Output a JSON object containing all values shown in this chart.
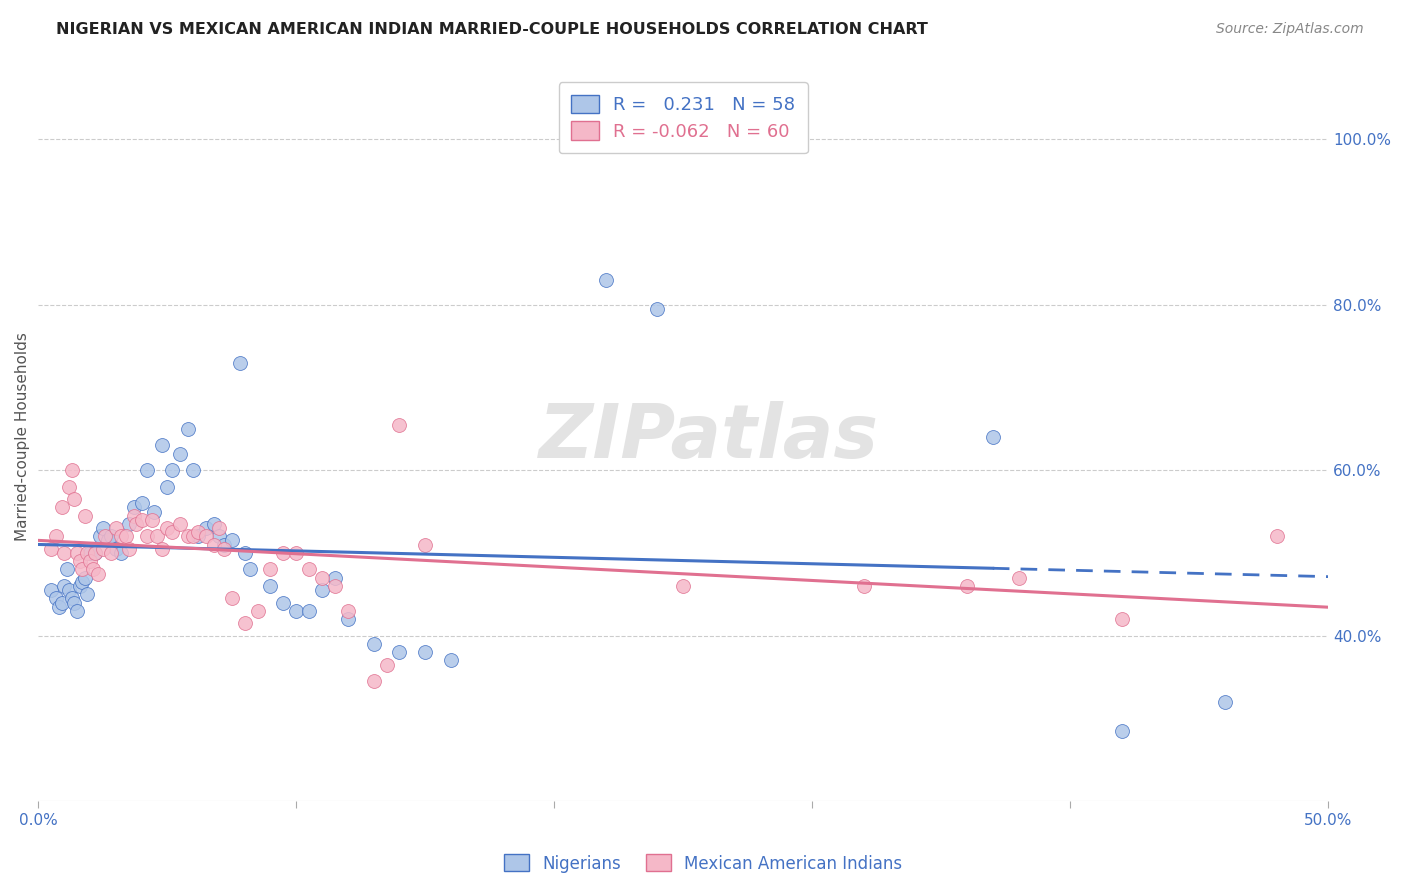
{
  "title": "NIGERIAN VS MEXICAN AMERICAN INDIAN MARRIED-COUPLE HOUSEHOLDS CORRELATION CHART",
  "source": "Source: ZipAtlas.com",
  "ylabel": "Married-couple Households",
  "legend_label1": "Nigerians",
  "legend_label2": "Mexican American Indians",
  "blue_color": "#aec6e8",
  "pink_color": "#f5b8c8",
  "blue_line_color": "#4472c4",
  "pink_line_color": "#e07090",
  "R_blue": 0.231,
  "N_blue": 58,
  "R_pink": -0.062,
  "N_pink": 60,
  "xmin": 0.0,
  "xmax": 0.5,
  "ymin": 0.2,
  "ymax": 1.08,
  "ytick_vals": [
    0.4,
    0.6,
    0.8,
    1.0
  ],
  "ytick_labels": [
    "40.0%",
    "60.0%",
    "80.0%",
    "100.0%"
  ],
  "xtick_vals": [
    0.0,
    0.1,
    0.2,
    0.3,
    0.4,
    0.5
  ],
  "blue_dots": [
    [
      0.005,
      0.455
    ],
    [
      0.007,
      0.445
    ],
    [
      0.008,
      0.435
    ],
    [
      0.009,
      0.44
    ],
    [
      0.01,
      0.46
    ],
    [
      0.011,
      0.48
    ],
    [
      0.012,
      0.455
    ],
    [
      0.013,
      0.445
    ],
    [
      0.014,
      0.44
    ],
    [
      0.015,
      0.43
    ],
    [
      0.016,
      0.46
    ],
    [
      0.017,
      0.465
    ],
    [
      0.018,
      0.47
    ],
    [
      0.019,
      0.45
    ],
    [
      0.02,
      0.5
    ],
    [
      0.022,
      0.5
    ],
    [
      0.024,
      0.52
    ],
    [
      0.025,
      0.53
    ],
    [
      0.027,
      0.515
    ],
    [
      0.028,
      0.52
    ],
    [
      0.03,
      0.505
    ],
    [
      0.032,
      0.5
    ],
    [
      0.035,
      0.535
    ],
    [
      0.037,
      0.555
    ],
    [
      0.04,
      0.56
    ],
    [
      0.042,
      0.6
    ],
    [
      0.045,
      0.55
    ],
    [
      0.048,
      0.63
    ],
    [
      0.05,
      0.58
    ],
    [
      0.052,
      0.6
    ],
    [
      0.055,
      0.62
    ],
    [
      0.058,
      0.65
    ],
    [
      0.06,
      0.6
    ],
    [
      0.062,
      0.52
    ],
    [
      0.065,
      0.53
    ],
    [
      0.068,
      0.535
    ],
    [
      0.07,
      0.52
    ],
    [
      0.072,
      0.51
    ],
    [
      0.075,
      0.515
    ],
    [
      0.078,
      0.73
    ],
    [
      0.08,
      0.5
    ],
    [
      0.082,
      0.48
    ],
    [
      0.09,
      0.46
    ],
    [
      0.095,
      0.44
    ],
    [
      0.1,
      0.43
    ],
    [
      0.105,
      0.43
    ],
    [
      0.11,
      0.455
    ],
    [
      0.115,
      0.47
    ],
    [
      0.12,
      0.42
    ],
    [
      0.13,
      0.39
    ],
    [
      0.14,
      0.38
    ],
    [
      0.15,
      0.38
    ],
    [
      0.16,
      0.37
    ],
    [
      0.22,
      0.83
    ],
    [
      0.24,
      0.795
    ],
    [
      0.37,
      0.64
    ],
    [
      0.42,
      0.285
    ],
    [
      0.46,
      0.32
    ]
  ],
  "pink_dots": [
    [
      0.005,
      0.505
    ],
    [
      0.007,
      0.52
    ],
    [
      0.009,
      0.555
    ],
    [
      0.01,
      0.5
    ],
    [
      0.012,
      0.58
    ],
    [
      0.013,
      0.6
    ],
    [
      0.014,
      0.565
    ],
    [
      0.015,
      0.5
    ],
    [
      0.016,
      0.49
    ],
    [
      0.017,
      0.48
    ],
    [
      0.018,
      0.545
    ],
    [
      0.019,
      0.5
    ],
    [
      0.02,
      0.49
    ],
    [
      0.021,
      0.48
    ],
    [
      0.022,
      0.5
    ],
    [
      0.023,
      0.475
    ],
    [
      0.025,
      0.505
    ],
    [
      0.026,
      0.52
    ],
    [
      0.028,
      0.5
    ],
    [
      0.03,
      0.53
    ],
    [
      0.032,
      0.52
    ],
    [
      0.034,
      0.52
    ],
    [
      0.035,
      0.505
    ],
    [
      0.037,
      0.545
    ],
    [
      0.038,
      0.535
    ],
    [
      0.04,
      0.54
    ],
    [
      0.042,
      0.52
    ],
    [
      0.044,
      0.54
    ],
    [
      0.046,
      0.52
    ],
    [
      0.048,
      0.505
    ],
    [
      0.05,
      0.53
    ],
    [
      0.052,
      0.525
    ],
    [
      0.055,
      0.535
    ],
    [
      0.058,
      0.52
    ],
    [
      0.06,
      0.52
    ],
    [
      0.062,
      0.525
    ],
    [
      0.065,
      0.52
    ],
    [
      0.068,
      0.51
    ],
    [
      0.07,
      0.53
    ],
    [
      0.072,
      0.505
    ],
    [
      0.075,
      0.445
    ],
    [
      0.08,
      0.415
    ],
    [
      0.085,
      0.43
    ],
    [
      0.09,
      0.48
    ],
    [
      0.095,
      0.5
    ],
    [
      0.1,
      0.5
    ],
    [
      0.105,
      0.48
    ],
    [
      0.11,
      0.47
    ],
    [
      0.115,
      0.46
    ],
    [
      0.12,
      0.43
    ],
    [
      0.13,
      0.345
    ],
    [
      0.135,
      0.365
    ],
    [
      0.14,
      0.655
    ],
    [
      0.15,
      0.51
    ],
    [
      0.25,
      0.46
    ],
    [
      0.32,
      0.46
    ],
    [
      0.36,
      0.46
    ],
    [
      0.38,
      0.47
    ],
    [
      0.42,
      0.42
    ],
    [
      0.48,
      0.52
    ]
  ]
}
